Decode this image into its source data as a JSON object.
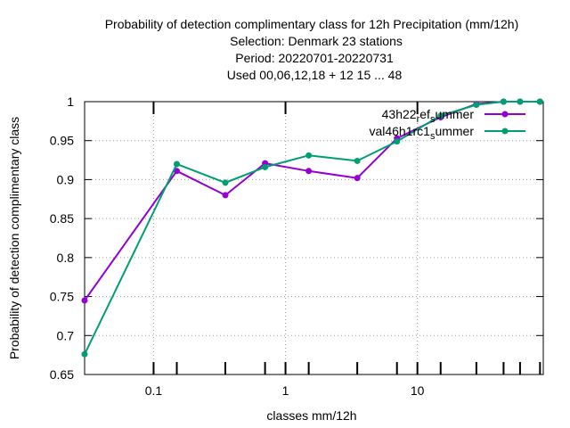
{
  "chart_data": {
    "type": "line",
    "title_lines": [
      "Probability of detection complimentary class  for 12h Precipitation (mm/12h)",
      "Selection: Denmark     23 stations",
      "Period: 20220701-20220731",
      "Used  00,06,12,18  + 12 15 ... 48"
    ],
    "xlabel": "classes mm/12h",
    "ylabel": "Probability of detection complimentary class",
    "xscale": "log",
    "xlim": [
      0.03,
      90
    ],
    "ylim": [
      0.65,
      1.0
    ],
    "x_tick_labels": [
      "0.1",
      "1",
      "10"
    ],
    "y_ticks": [
      0.65,
      0.7,
      0.75,
      0.8,
      0.85,
      0.9,
      0.95,
      1.0
    ],
    "y_tick_labels": [
      "0.65",
      "0.7",
      "0.75",
      "0.8",
      "0.85",
      "0.9",
      "0.95",
      "1"
    ],
    "grid": true,
    "legend_position": "top-right",
    "series": [
      {
        "name": "43h22_ref_summer",
        "label_main": "43h22",
        "label_sub1": "r",
        "label_mid": "ef",
        "label_sub2": "s",
        "label_end": "ummer",
        "color": "#9400d3",
        "x": [
          0.03,
          0.15,
          0.35,
          0.7,
          1.5,
          3.5,
          7,
          15,
          28,
          45,
          60,
          85
        ],
        "y": [
          0.745,
          0.911,
          0.88,
          0.921,
          0.911,
          0.902,
          0.953,
          0.98,
          0.997,
          1.0,
          1.0,
          1.0
        ]
      },
      {
        "name": "val46h1rc1_summer",
        "label_main": "val46h1rc1",
        "label_sub1": "s",
        "label_end": "ummer",
        "color": "#009e73",
        "x": [
          0.03,
          0.15,
          0.35,
          0.7,
          1.5,
          3.5,
          7,
          15,
          28,
          45,
          60,
          85
        ],
        "y": [
          0.676,
          0.92,
          0.896,
          0.916,
          0.931,
          0.924,
          0.949,
          0.982,
          0.996,
          1.0,
          1.0,
          1.0
        ]
      }
    ]
  }
}
